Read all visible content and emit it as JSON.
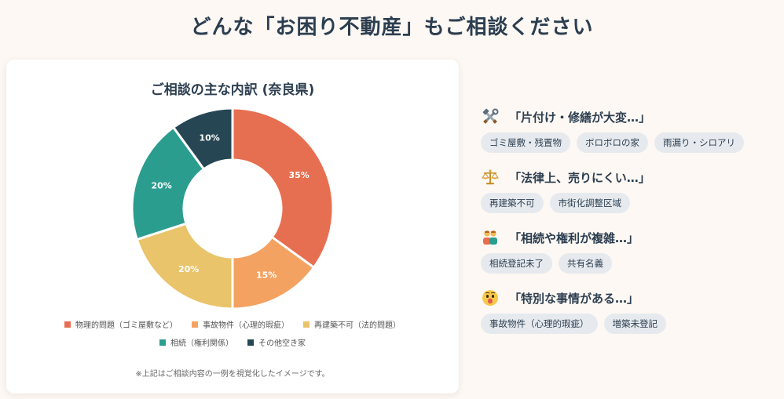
{
  "page_title": "どんな「お困り不動産」もご相談ください",
  "card": {
    "title": "ご相談の主な内訳 (奈良県)",
    "note": "※上記はご相談内容の一例を視覚化したイメージです。"
  },
  "chart_data": {
    "type": "pie",
    "title": "ご相談の主な内訳 (奈良県)",
    "categories": [
      "物理的問題（ゴミ屋敷など）",
      "事故物件（心理的瑕疵）",
      "再建築不可（法的問題）",
      "相続（権利関係）",
      "その他空き家"
    ],
    "values": [
      35,
      15,
      20,
      20,
      10
    ],
    "labels": [
      "35%",
      "15%",
      "20%",
      "20%",
      "10%"
    ],
    "colors": [
      "#e76f51",
      "#f4a261",
      "#e9c46a",
      "#2a9d8f",
      "#264653"
    ],
    "legend_position": "bottom",
    "donut": true
  },
  "categories": [
    {
      "icon": "tools-icon",
      "title": "「片付け・修繕が大変…」",
      "tags": [
        "ゴミ屋敷・残置物",
        "ボロボロの家",
        "雨漏り・シロアリ"
      ]
    },
    {
      "icon": "scales-icon",
      "title": "「法律上、売りにくい…」",
      "tags": [
        "再建築不可",
        "市街化調整区域"
      ]
    },
    {
      "icon": "people-icon",
      "title": "「相続や権利が複雑…」",
      "tags": [
        "相続登記未了",
        "共有名義"
      ]
    },
    {
      "icon": "surprised-face-icon",
      "title": "「特別な事情がある…」",
      "tags": [
        "事故物件（心理的瑕疵）",
        "増築未登記"
      ]
    }
  ]
}
